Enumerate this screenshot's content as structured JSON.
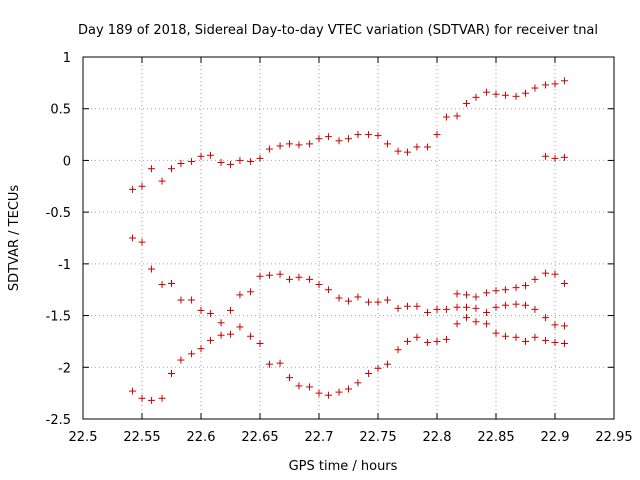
{
  "chart_data": {
    "type": "scatter",
    "title": "Day 189 of 2018, Sidereal Day-to-day VTEC variation (SDTVAR) for receiver tnal",
    "xlabel": "GPS time / hours",
    "ylabel": "SDTVAR / TECUs",
    "xlim": [
      22.5,
      22.95
    ],
    "ylim": [
      -2.5,
      1
    ],
    "xticks": [
      "22.5",
      "22.55",
      "22.6",
      "22.65",
      "22.7",
      "22.75",
      "22.8",
      "22.85",
      "22.9",
      "22.95"
    ],
    "yticks": [
      "1",
      "0.5",
      "0",
      "-0.5",
      "-1",
      "-1.5",
      "-2",
      "-2.5"
    ],
    "grid": true,
    "marker": "+",
    "color": "#cc0000",
    "series": [
      {
        "x": [
          22.542,
          22.55,
          22.558,
          22.567,
          22.575,
          22.583,
          22.592,
          22.6,
          22.608,
          22.617,
          22.625,
          22.633,
          22.642,
          22.65,
          22.658,
          22.667,
          22.675,
          22.683,
          22.692,
          22.7,
          22.708,
          22.717,
          22.725,
          22.733,
          22.742,
          22.75,
          22.758,
          22.767,
          22.775,
          22.783,
          22.792,
          22.8,
          22.808,
          22.817,
          22.825,
          22.833,
          22.842,
          22.85,
          22.858,
          22.867,
          22.875,
          22.883,
          22.892,
          22.9,
          22.908
        ],
        "y": [
          -0.28,
          -0.25,
          -0.08,
          -0.2,
          -0.08,
          -0.03,
          -0.01,
          0.04,
          0.05,
          -0.02,
          -0.04,
          0.0,
          -0.01,
          0.02,
          0.11,
          0.14,
          0.16,
          0.15,
          0.16,
          0.21,
          0.23,
          0.19,
          0.21,
          0.25,
          0.25,
          0.24,
          0.16,
          0.09,
          0.08,
          0.13,
          0.13,
          0.25,
          0.42,
          0.43,
          0.55,
          0.61,
          0.66,
          0.64,
          0.63,
          0.62,
          0.65,
          0.7,
          0.73,
          0.74,
          0.77
        ]
      },
      {
        "x": [
          22.892,
          22.9,
          22.908
        ],
        "y": [
          0.04,
          0.02,
          0.03
        ]
      },
      {
        "x": [
          22.542,
          22.55,
          22.558,
          22.567,
          22.575,
          22.583,
          22.592,
          22.6,
          22.608,
          22.617,
          22.625,
          22.633,
          22.642,
          22.65,
          22.658,
          22.667,
          22.675,
          22.683,
          22.692,
          22.7,
          22.708,
          22.717,
          22.725,
          22.733,
          22.742,
          22.75,
          22.758,
          22.767,
          22.775,
          22.783,
          22.792,
          22.8,
          22.808,
          22.817,
          22.825,
          22.833,
          22.842,
          22.85,
          22.858,
          22.867,
          22.875,
          22.883,
          22.892,
          22.9,
          22.908
        ],
        "y": [
          -0.75,
          -0.79,
          -1.05,
          -1.2,
          -1.19,
          -1.35,
          -1.35,
          -1.45,
          -1.48,
          -1.57,
          -1.45,
          -1.3,
          -1.27,
          -1.12,
          -1.11,
          -1.1,
          -1.15,
          -1.13,
          -1.15,
          -1.2,
          -1.25,
          -1.33,
          -1.36,
          -1.32,
          -1.37,
          -1.37,
          -1.35,
          -1.43,
          -1.41,
          -1.41,
          -1.47,
          -1.44,
          -1.44,
          -1.42,
          -1.42,
          -1.43,
          -1.47,
          -1.42,
          -1.4,
          -1.39,
          -1.4,
          -1.44,
          -1.52,
          -1.59,
          -1.6
        ]
      },
      {
        "x": [
          22.542,
          22.55,
          22.558,
          22.567,
          22.575,
          22.583,
          22.592,
          22.6,
          22.608,
          22.617,
          22.625,
          22.633,
          22.642,
          22.65,
          22.658,
          22.667,
          22.675,
          22.683,
          22.692,
          22.7,
          22.708,
          22.717,
          22.725,
          22.733,
          22.742,
          22.75,
          22.758,
          22.767,
          22.775,
          22.783,
          22.792,
          22.8,
          22.808,
          22.817,
          22.825,
          22.833,
          22.842,
          22.85,
          22.858,
          22.867,
          22.875,
          22.883,
          22.892,
          22.9,
          22.908
        ],
        "y": [
          -2.23,
          -2.3,
          -2.32,
          -2.3,
          -2.06,
          -1.93,
          -1.87,
          -1.82,
          -1.74,
          -1.69,
          -1.68,
          -1.61,
          -1.7,
          -1.77,
          -1.97,
          -1.96,
          -2.1,
          -2.18,
          -2.19,
          -2.25,
          -2.27,
          -2.24,
          -2.21,
          -2.15,
          -2.06,
          -2.01,
          -1.97,
          -1.83,
          -1.75,
          -1.71,
          -1.76,
          -1.75,
          -1.73,
          -1.58,
          -1.52,
          -1.56,
          -1.58,
          -1.67,
          -1.7,
          -1.71,
          -1.75,
          -1.71,
          -1.74,
          -1.76,
          -1.77
        ]
      },
      {
        "x": [
          22.817,
          22.825,
          22.833,
          22.842,
          22.85,
          22.858,
          22.867,
          22.875,
          22.883,
          22.892,
          22.9,
          22.908
        ],
        "y": [
          -1.29,
          -1.3,
          -1.32,
          -1.28,
          -1.26,
          -1.25,
          -1.23,
          -1.21,
          -1.15,
          -1.09,
          -1.1,
          -1.19
        ]
      }
    ]
  }
}
